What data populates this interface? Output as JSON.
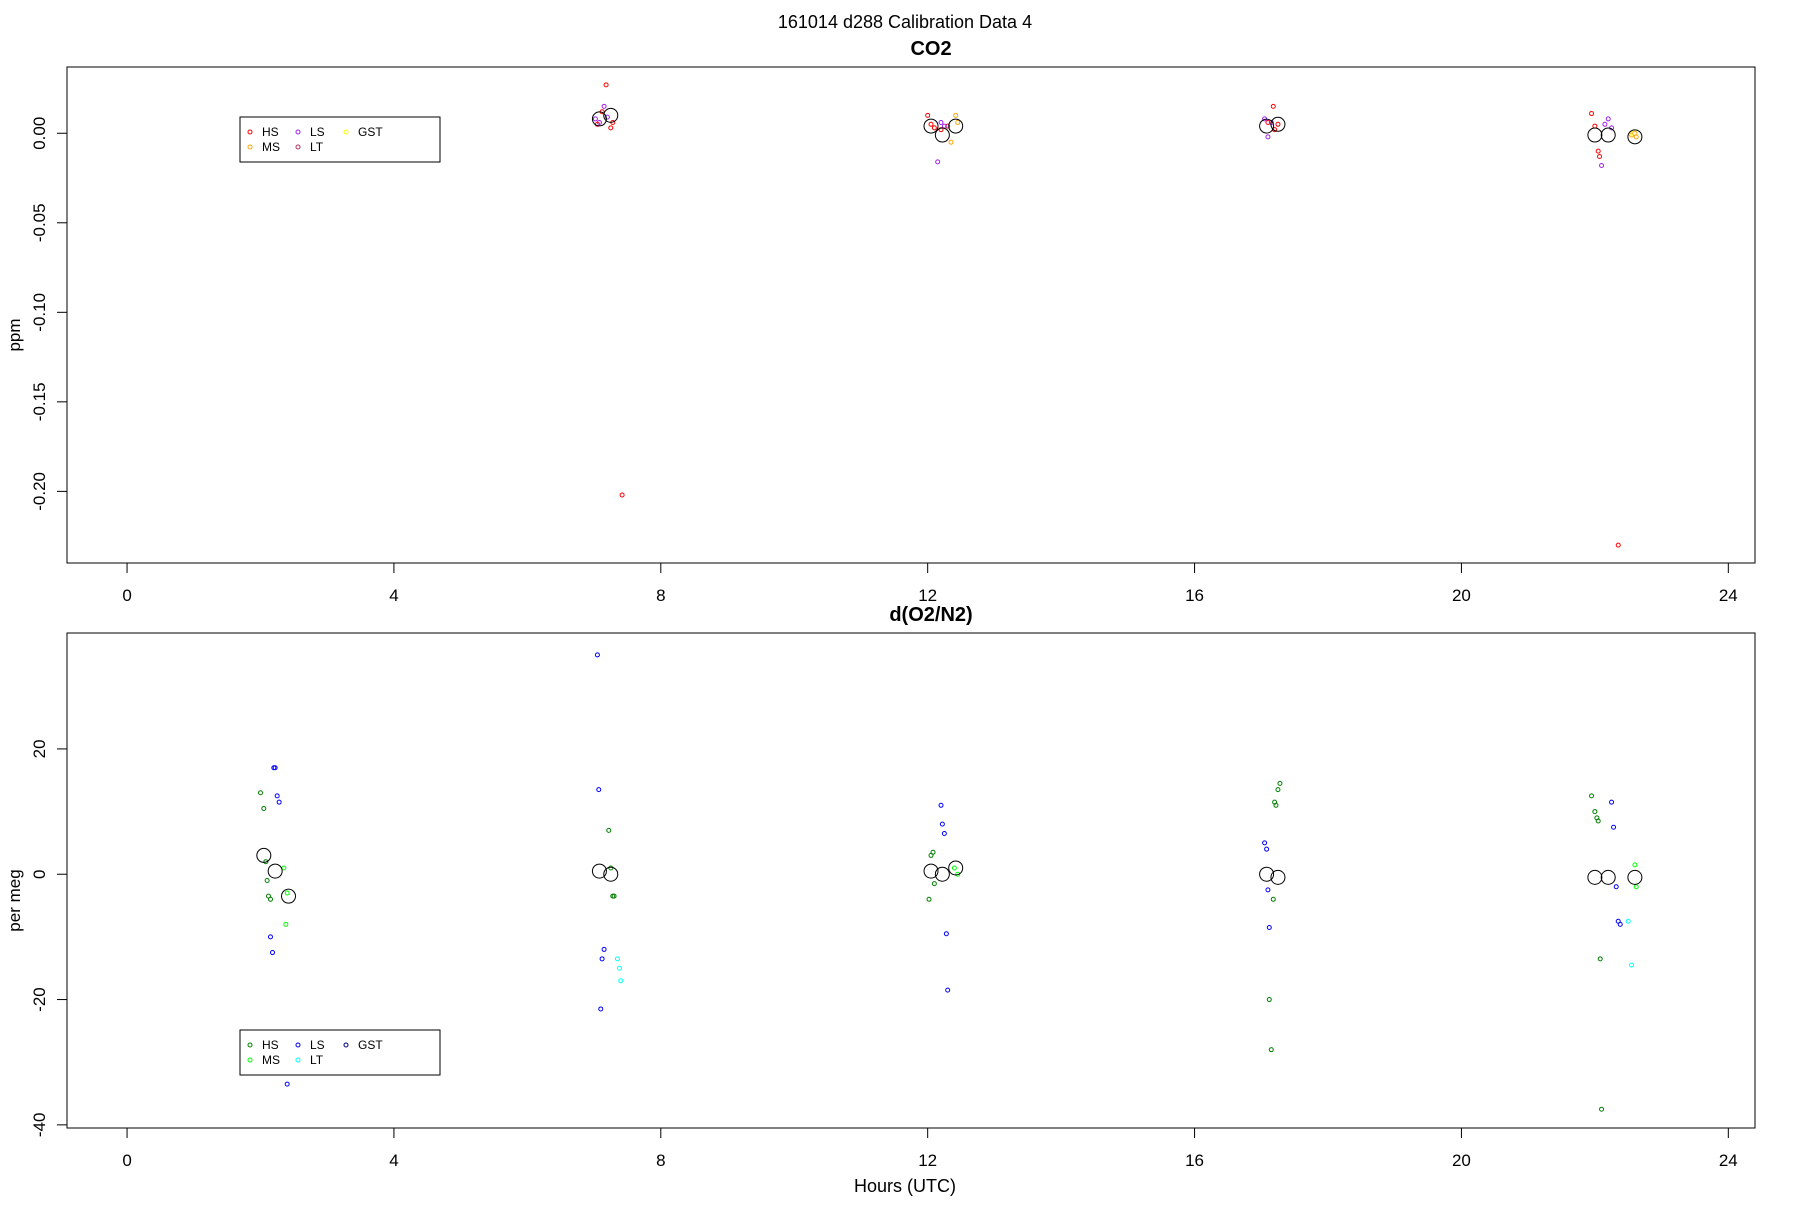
{
  "figure": {
    "suptitle": "161014   d288   Calibration Data 4",
    "xlabel": "Hours (UTC)"
  },
  "chart_data": [
    {
      "type": "scatter",
      "title": "CO2",
      "ylabel": "ppm",
      "xlabel": "",
      "xlim": [
        -0.9,
        24.4
      ],
      "ylim": [
        -0.24,
        0.037
      ],
      "xticks": [
        0,
        4,
        8,
        12,
        16,
        20,
        24
      ],
      "yticks": [
        0.0,
        -0.05,
        -0.1,
        -0.15,
        -0.2
      ],
      "ytick_labels": [
        "0.00",
        "-0.05",
        "-0.10",
        "-0.15",
        "-0.20"
      ],
      "grid": false,
      "legend": {
        "placement": "upper-left",
        "entries": [
          {
            "label": "HS",
            "color": "#ff0000"
          },
          {
            "label": "MS",
            "color": "#ffa500"
          },
          {
            "label": "LS",
            "color": "#a020f0"
          },
          {
            "label": "LT",
            "color": "#b03060"
          },
          {
            "label": "GST",
            "color": "#ffff00"
          }
        ]
      },
      "series": [
        {
          "name": "HS",
          "color": "#ff0000",
          "points": [
            [
              7.05,
              0.005
            ],
            [
              7.12,
              0.012
            ],
            [
              7.18,
              0.027
            ],
            [
              7.25,
              0.003
            ],
            [
              7.28,
              0.006
            ],
            [
              7.42,
              -0.202
            ],
            [
              12.0,
              0.01
            ],
            [
              12.05,
              0.005
            ],
            [
              12.1,
              0.003
            ],
            [
              12.2,
              0.002
            ],
            [
              12.3,
              0.004
            ],
            [
              17.1,
              0.006
            ],
            [
              17.18,
              0.015
            ],
            [
              17.2,
              0.002
            ],
            [
              17.25,
              0.005
            ],
            [
              21.95,
              0.011
            ],
            [
              22.0,
              0.004
            ],
            [
              22.05,
              -0.01
            ],
            [
              22.07,
              -0.013
            ],
            [
              22.35,
              -0.23
            ]
          ]
        },
        {
          "name": "MS",
          "color": "#ffa500",
          "points": [
            [
              12.35,
              -0.005
            ],
            [
              12.42,
              0.01
            ],
            [
              12.45,
              0.006
            ],
            [
              22.55,
              -0.001
            ],
            [
              22.6,
              0.0
            ],
            [
              22.62,
              -0.002
            ]
          ]
        },
        {
          "name": "LS",
          "color": "#a020f0",
          "points": [
            [
              7.02,
              0.008
            ],
            [
              7.08,
              0.006
            ],
            [
              7.15,
              0.015
            ],
            [
              7.2,
              0.009
            ],
            [
              12.15,
              -0.016
            ],
            [
              12.2,
              0.006
            ],
            [
              12.25,
              0.004
            ],
            [
              17.05,
              0.008
            ],
            [
              17.1,
              -0.002
            ],
            [
              17.15,
              0.006
            ],
            [
              22.1,
              -0.018
            ],
            [
              22.15,
              0.005
            ],
            [
              22.2,
              0.008
            ],
            [
              22.25,
              0.003
            ]
          ]
        },
        {
          "name": "LT",
          "color": "#b03060",
          "points": []
        },
        {
          "name": "GST",
          "color": "#ffff00",
          "points": [
            [
              22.55,
              0.0
            ]
          ]
        },
        {
          "name": "",
          "color": "#000000",
          "marker": "mean",
          "points": [
            [
              7.08,
              0.008
            ],
            [
              7.25,
              0.01
            ],
            [
              12.05,
              0.004
            ],
            [
              12.22,
              -0.001
            ],
            [
              12.42,
              0.004
            ],
            [
              17.08,
              0.004
            ],
            [
              17.25,
              0.005
            ],
            [
              22.0,
              -0.001
            ],
            [
              22.2,
              -0.001
            ],
            [
              22.6,
              -0.002
            ]
          ]
        }
      ]
    },
    {
      "type": "scatter",
      "title": "d(O2/N2)",
      "ylabel": "per meg",
      "xlabel": "Hours (UTC)",
      "xlim": [
        -0.9,
        24.4
      ],
      "ylim": [
        -40.5,
        38.5
      ],
      "xticks": [
        0,
        4,
        8,
        12,
        16,
        20,
        24
      ],
      "yticks": [
        20,
        0,
        -20,
        -40
      ],
      "ytick_labels": [
        "20",
        "0",
        "-20",
        "-40"
      ],
      "grid": false,
      "legend": {
        "placement": "lower-left",
        "entries": [
          {
            "label": "HS",
            "color": "#008000"
          },
          {
            "label": "MS",
            "color": "#00ff00"
          },
          {
            "label": "LS",
            "color": "#0000ff"
          },
          {
            "label": "LT",
            "color": "#00ffff"
          },
          {
            "label": "GST",
            "color": "#000080"
          }
        ]
      },
      "series": [
        {
          "name": "HS",
          "color": "#008000",
          "points": [
            [
              2.0,
              13.0
            ],
            [
              2.05,
              10.5
            ],
            [
              2.08,
              2.0
            ],
            [
              2.1,
              -1.0
            ],
            [
              2.12,
              -3.5
            ],
            [
              2.15,
              -4.0
            ],
            [
              7.22,
              7.0
            ],
            [
              7.25,
              1.0
            ],
            [
              7.28,
              -3.5
            ],
            [
              7.3,
              -3.5
            ],
            [
              12.02,
              -4.0
            ],
            [
              12.05,
              3.0
            ],
            [
              12.08,
              3.5
            ],
            [
              12.1,
              -1.5
            ],
            [
              17.12,
              -20.0
            ],
            [
              17.15,
              -28.0
            ],
            [
              17.18,
              -4.0
            ],
            [
              17.2,
              11.5
            ],
            [
              17.22,
              11.0
            ],
            [
              17.25,
              13.5
            ],
            [
              17.28,
              14.5
            ],
            [
              21.95,
              12.5
            ],
            [
              22.0,
              10.0
            ],
            [
              22.03,
              9.0
            ],
            [
              22.05,
              8.5
            ],
            [
              22.08,
              -13.5
            ],
            [
              22.1,
              -37.5
            ]
          ]
        },
        {
          "name": "MS",
          "color": "#00ff00",
          "points": [
            [
              2.35,
              1.0
            ],
            [
              2.38,
              -8.0
            ],
            [
              2.4,
              -3.0
            ],
            [
              12.4,
              1.0
            ],
            [
              12.45,
              0.0
            ],
            [
              22.6,
              1.5
            ],
            [
              22.62,
              -2.0
            ]
          ]
        },
        {
          "name": "LS",
          "color": "#0000ff",
          "points": [
            [
              2.15,
              -10.0
            ],
            [
              2.18,
              -12.5
            ],
            [
              2.2,
              17.0
            ],
            [
              2.22,
              17.0
            ],
            [
              2.25,
              12.5
            ],
            [
              2.28,
              11.5
            ],
            [
              2.4,
              -33.5
            ],
            [
              7.05,
              35.0
            ],
            [
              7.07,
              13.5
            ],
            [
              7.1,
              -21.5
            ],
            [
              7.12,
              -13.5
            ],
            [
              7.15,
              -12.0
            ],
            [
              12.2,
              11.0
            ],
            [
              12.22,
              8.0
            ],
            [
              12.25,
              6.5
            ],
            [
              12.28,
              -9.5
            ],
            [
              12.3,
              -18.5
            ],
            [
              17.05,
              5.0
            ],
            [
              17.08,
              4.0
            ],
            [
              17.1,
              -2.5
            ],
            [
              17.12,
              -8.5
            ],
            [
              22.25,
              11.5
            ],
            [
              22.28,
              7.5
            ],
            [
              22.32,
              -2.0
            ],
            [
              22.35,
              -7.5
            ],
            [
              22.38,
              -8.0
            ]
          ]
        },
        {
          "name": "LT",
          "color": "#00ffff",
          "points": [
            [
              7.35,
              -13.5
            ],
            [
              7.38,
              -15.0
            ],
            [
              7.4,
              -17.0
            ],
            [
              22.5,
              -7.5
            ],
            [
              22.55,
              -14.5
            ]
          ]
        },
        {
          "name": "GST",
          "color": "#000080",
          "points": []
        },
        {
          "name": "",
          "color": "#000000",
          "marker": "mean",
          "points": [
            [
              2.05,
              3.0
            ],
            [
              2.22,
              0.5
            ],
            [
              2.42,
              -3.5
            ],
            [
              7.08,
              0.5
            ],
            [
              7.25,
              0.0
            ],
            [
              12.05,
              0.5
            ],
            [
              12.22,
              0.0
            ],
            [
              12.42,
              1.0
            ],
            [
              17.08,
              0.0
            ],
            [
              17.25,
              -0.5
            ],
            [
              22.0,
              -0.5
            ],
            [
              22.2,
              -0.5
            ],
            [
              22.6,
              -0.5
            ]
          ]
        }
      ]
    }
  ]
}
